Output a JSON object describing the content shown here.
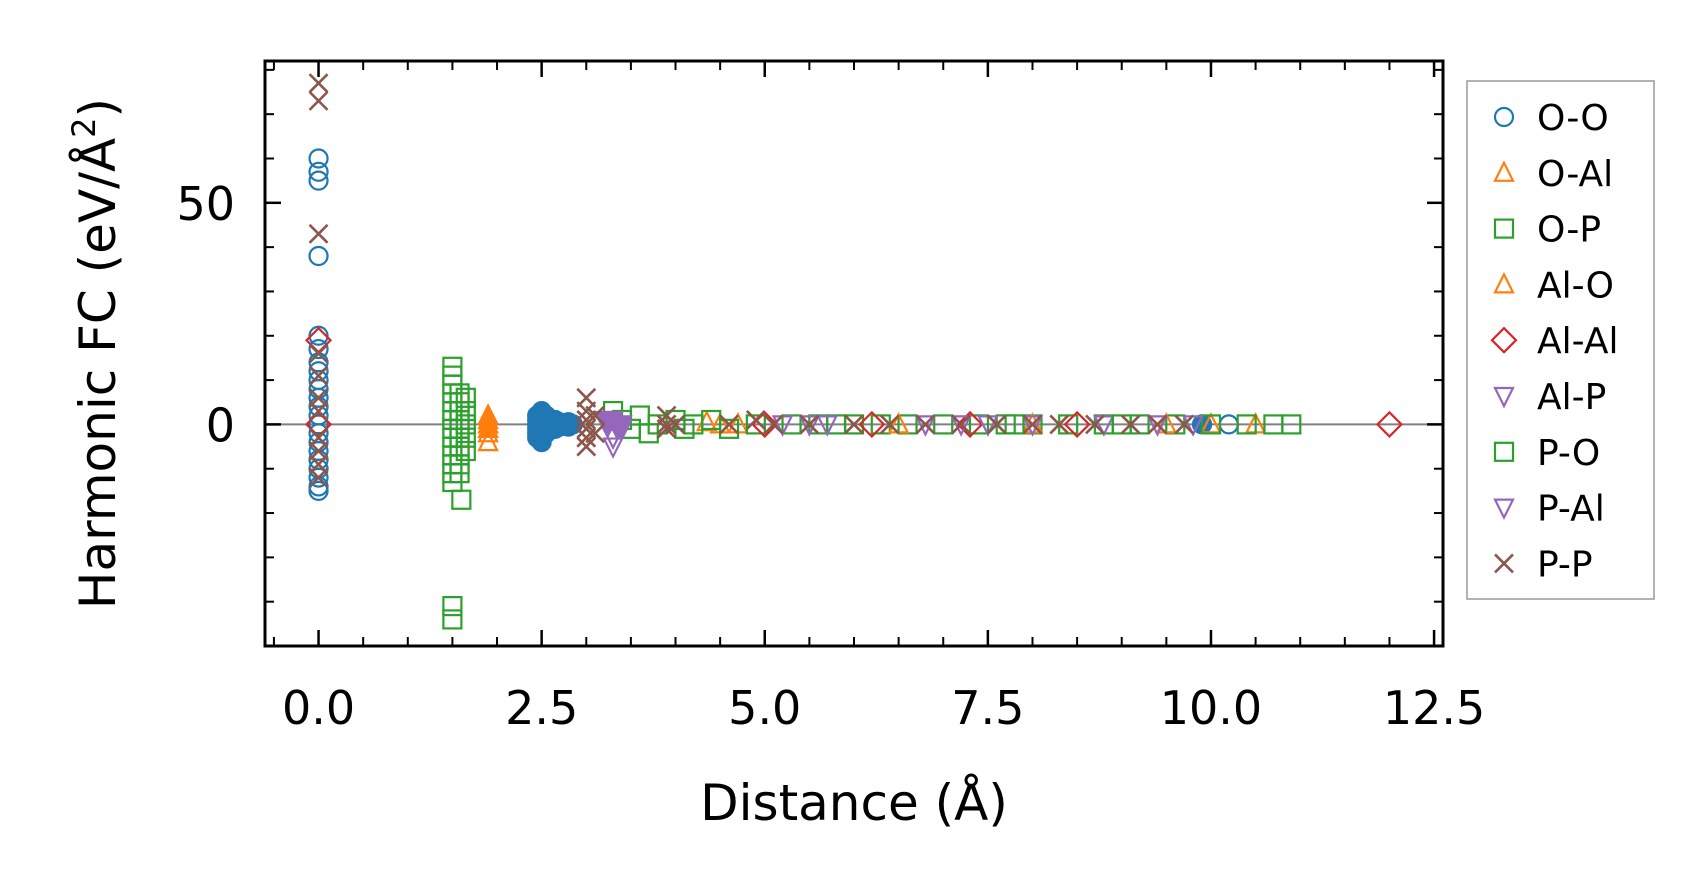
{
  "chart_data": {
    "type": "scatter",
    "xlabel": "Distance (Å)",
    "ylabel_main": "Harmonic FC (eV/Å",
    "ylabel_sup": "2",
    "ylabel_close": ")",
    "xlim": [
      -0.6,
      12.6
    ],
    "ylim": [
      -50,
      82
    ],
    "x_ticks": [
      0.0,
      2.5,
      5.0,
      7.5,
      10.0,
      12.5
    ],
    "x_tick_labels": [
      "0.0",
      "2.5",
      "5.0",
      "7.5",
      "10.0",
      "12.5"
    ],
    "y_ticks": [
      0,
      50
    ],
    "y_tick_labels": [
      "0",
      "50"
    ],
    "zero_line": true,
    "grid": false,
    "legend_position": "right",
    "series": [
      {
        "name": "O-O",
        "marker": "circle",
        "color": "#1f77b4",
        "filled": false,
        "points": [
          [
            0,
            60
          ],
          [
            0,
            57
          ],
          [
            0,
            55
          ],
          [
            0,
            38
          ],
          [
            0,
            20
          ],
          [
            0,
            17
          ],
          [
            0,
            14
          ],
          [
            0,
            12
          ],
          [
            0,
            10
          ],
          [
            0,
            8
          ],
          [
            0,
            6
          ],
          [
            0,
            4
          ],
          [
            0,
            2
          ],
          [
            0,
            0
          ],
          [
            0,
            -2
          ],
          [
            0,
            -4
          ],
          [
            0,
            -6
          ],
          [
            0,
            -8
          ],
          [
            0,
            -10
          ],
          [
            0,
            -12
          ],
          [
            0,
            -14
          ],
          [
            0,
            -15
          ],
          [
            10.2,
            0
          ]
        ]
      },
      {
        "name": "O-O (dense)",
        "marker": "circle",
        "color": "#1f77b4",
        "filled": true,
        "legend": false,
        "points": [
          [
            2.45,
            2
          ],
          [
            2.45,
            1
          ],
          [
            2.45,
            0
          ],
          [
            2.45,
            -1
          ],
          [
            2.45,
            -2
          ],
          [
            2.45,
            -3
          ],
          [
            2.5,
            3
          ],
          [
            2.5,
            2
          ],
          [
            2.5,
            0
          ],
          [
            2.5,
            -2
          ],
          [
            2.5,
            -4
          ],
          [
            2.55,
            2
          ],
          [
            2.55,
            0
          ],
          [
            2.55,
            -2
          ],
          [
            2.6,
            1
          ],
          [
            2.6,
            -1
          ],
          [
            2.65,
            1
          ],
          [
            2.65,
            -1
          ],
          [
            2.7,
            0.5
          ],
          [
            2.7,
            -0.5
          ],
          [
            2.75,
            0
          ],
          [
            2.8,
            0.5
          ],
          [
            2.8,
            -0.5
          ],
          [
            2.85,
            0
          ],
          [
            9.9,
            0
          ]
        ]
      },
      {
        "name": "O-Al",
        "marker": "triangle-up",
        "color": "#ff7f0e",
        "filled": false,
        "points": [
          [
            1.9,
            2
          ],
          [
            1.9,
            0
          ],
          [
            1.9,
            -2
          ],
          [
            1.9,
            -4
          ],
          [
            4.35,
            0.5
          ],
          [
            4.5,
            0
          ],
          [
            4.7,
            0
          ],
          [
            10.0,
            0
          ],
          [
            10.5,
            0
          ]
        ]
      },
      {
        "name": "O-Al (dense)",
        "marker": "triangle-up",
        "color": "#ff7f0e",
        "filled": true,
        "legend": false,
        "points": [
          [
            1.9,
            1
          ],
          [
            1.9,
            0
          ],
          [
            1.9,
            -1
          ]
        ]
      },
      {
        "name": "O-P",
        "marker": "square",
        "color": "#2ca02c",
        "filled": false,
        "points": [
          [
            1.5,
            13
          ],
          [
            1.5,
            11
          ],
          [
            1.5,
            9
          ],
          [
            1.5,
            7
          ],
          [
            1.5,
            5
          ],
          [
            1.5,
            3
          ],
          [
            1.5,
            1
          ],
          [
            1.5,
            -1
          ],
          [
            1.5,
            -3
          ],
          [
            1.5,
            -5
          ],
          [
            1.5,
            -7
          ],
          [
            1.5,
            -9
          ],
          [
            1.5,
            -11
          ],
          [
            1.5,
            -13
          ],
          [
            1.5,
            -41
          ],
          [
            1.5,
            -44
          ],
          [
            1.58,
            7
          ],
          [
            1.58,
            5
          ],
          [
            1.58,
            3
          ],
          [
            1.58,
            1
          ],
          [
            1.58,
            -1
          ],
          [
            1.58,
            -3
          ],
          [
            1.58,
            -5
          ],
          [
            1.58,
            -7
          ],
          [
            1.58,
            -9
          ],
          [
            1.58,
            -11
          ],
          [
            1.6,
            -17
          ],
          [
            1.65,
            6
          ],
          [
            1.65,
            3
          ],
          [
            1.65,
            0
          ],
          [
            1.65,
            -3
          ],
          [
            1.65,
            -6
          ],
          [
            3.3,
            3
          ],
          [
            3.4,
            1
          ],
          [
            3.5,
            -1
          ],
          [
            3.6,
            2
          ],
          [
            3.7,
            -2
          ],
          [
            3.8,
            0
          ],
          [
            4.0,
            1
          ],
          [
            4.1,
            -1
          ],
          [
            4.2,
            0
          ],
          [
            4.4,
            1
          ],
          [
            4.6,
            -1
          ],
          [
            4.9,
            0
          ],
          [
            5.3,
            0
          ],
          [
            5.6,
            0
          ],
          [
            6.0,
            0
          ],
          [
            6.3,
            0
          ],
          [
            6.6,
            0
          ],
          [
            7.0,
            0
          ],
          [
            7.4,
            0
          ],
          [
            7.7,
            0
          ],
          [
            8.0,
            0
          ],
          [
            8.4,
            0
          ],
          [
            8.8,
            0
          ],
          [
            9.2,
            0
          ],
          [
            9.6,
            0
          ],
          [
            10.0,
            0
          ],
          [
            10.4,
            0
          ],
          [
            10.7,
            0
          ],
          [
            10.9,
            0
          ]
        ]
      },
      {
        "name": "Al-O",
        "marker": "triangle-up",
        "color": "#ff7f0e",
        "filled": false,
        "points": [
          [
            6.5,
            0
          ],
          [
            8.0,
            0
          ],
          [
            9.5,
            0
          ]
        ]
      },
      {
        "name": "Al-Al",
        "marker": "diamond",
        "color": "#d62728",
        "filled": false,
        "points": [
          [
            0,
            19
          ],
          [
            0,
            0
          ],
          [
            5.0,
            0
          ],
          [
            6.2,
            0
          ],
          [
            7.3,
            0
          ],
          [
            8.5,
            0
          ],
          [
            12.0,
            0
          ]
        ]
      },
      {
        "name": "Al-P",
        "marker": "triangle-down",
        "color": "#9467bd",
        "filled": false,
        "points": [
          [
            3.3,
            -5
          ],
          [
            3.3,
            -3
          ],
          [
            3.4,
            -1
          ],
          [
            5.2,
            0
          ],
          [
            5.5,
            0
          ],
          [
            6.8,
            0
          ],
          [
            7.2,
            0
          ],
          [
            8.0,
            0
          ],
          [
            8.8,
            0
          ],
          [
            9.8,
            0
          ]
        ]
      },
      {
        "name": "Al-P (dense)",
        "marker": "triangle-down",
        "color": "#9467bd",
        "filled": true,
        "legend": false,
        "points": [
          [
            3.2,
            1
          ],
          [
            3.25,
            0
          ],
          [
            3.3,
            1
          ],
          [
            3.35,
            -1
          ],
          [
            3.4,
            0
          ]
        ]
      },
      {
        "name": "P-O",
        "marker": "square",
        "color": "#2ca02c",
        "filled": false,
        "points": [
          [
            5.8,
            0
          ],
          [
            7.8,
            0
          ],
          [
            9.0,
            0
          ]
        ]
      },
      {
        "name": "P-Al",
        "marker": "triangle-down",
        "color": "#9467bd",
        "filled": false,
        "points": [
          [
            5.7,
            0
          ],
          [
            7.5,
            0
          ],
          [
            9.4,
            0
          ]
        ]
      },
      {
        "name": "P-P",
        "marker": "x",
        "color": "#8c564b",
        "filled": false,
        "points": [
          [
            0,
            77
          ],
          [
            0,
            73
          ],
          [
            0,
            43
          ],
          [
            0,
            16
          ],
          [
            0,
            11
          ],
          [
            0,
            6
          ],
          [
            0,
            3
          ],
          [
            0,
            -3
          ],
          [
            0,
            -6
          ],
          [
            0,
            -9
          ],
          [
            0,
            -12
          ],
          [
            3.0,
            6
          ],
          [
            3.0,
            3
          ],
          [
            3.0,
            1
          ],
          [
            3.0,
            -1
          ],
          [
            3.0,
            -3
          ],
          [
            3.0,
            -5
          ],
          [
            3.1,
            2
          ],
          [
            3.1,
            -2
          ],
          [
            3.9,
            2
          ],
          [
            3.9,
            0
          ],
          [
            3.9,
            -1
          ],
          [
            4.0,
            0
          ],
          [
            4.6,
            0
          ],
          [
            4.9,
            1
          ],
          [
            5.1,
            0
          ],
          [
            5.5,
            0
          ],
          [
            6.0,
            0
          ],
          [
            6.4,
            0
          ],
          [
            6.8,
            0
          ],
          [
            7.2,
            0
          ],
          [
            7.6,
            0
          ],
          [
            8.0,
            0
          ],
          [
            8.3,
            0
          ],
          [
            8.7,
            0
          ],
          [
            9.1,
            0
          ],
          [
            9.4,
            0
          ],
          [
            9.7,
            0
          ]
        ]
      }
    ],
    "legend": [
      {
        "label": "O-O",
        "marker": "circle",
        "color": "#1f77b4"
      },
      {
        "label": "O-Al",
        "marker": "triangle-up",
        "color": "#ff7f0e"
      },
      {
        "label": "O-P",
        "marker": "square",
        "color": "#2ca02c"
      },
      {
        "label": "Al-O",
        "marker": "triangle-up",
        "color": "#ff7f0e"
      },
      {
        "label": "Al-Al",
        "marker": "diamond",
        "color": "#d62728"
      },
      {
        "label": "Al-P",
        "marker": "triangle-down",
        "color": "#9467bd"
      },
      {
        "label": "P-O",
        "marker": "square",
        "color": "#2ca02c"
      },
      {
        "label": "P-Al",
        "marker": "triangle-down",
        "color": "#9467bd"
      },
      {
        "label": "P-P",
        "marker": "x",
        "color": "#8c564b"
      }
    ]
  }
}
